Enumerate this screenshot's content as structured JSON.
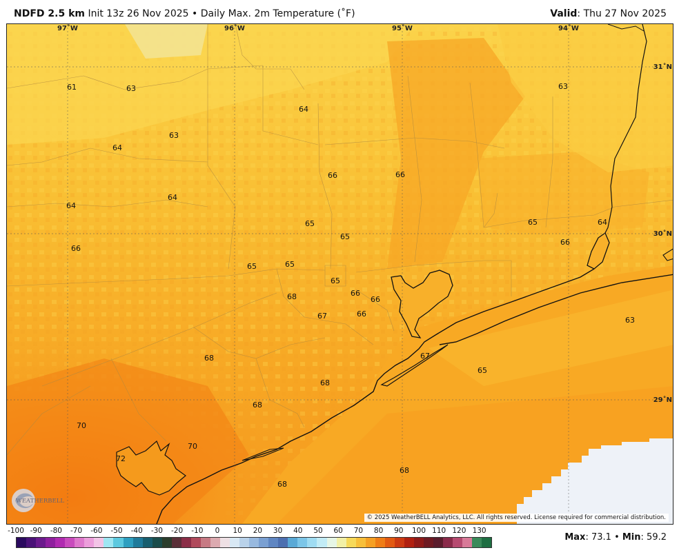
{
  "header": {
    "product": "NDFD 2.5 km",
    "init": "Init 13z 26 Nov 2025",
    "separator": "•",
    "field": "Daily Max. 2m Temperature (˚F)",
    "valid_label": "Valid",
    "valid_value": "Thu 27 Nov 2025"
  },
  "map": {
    "longitude_labels": [
      "97˚W",
      "96˚W",
      "95˚W",
      "94˚W"
    ],
    "latitude_labels": [
      "31˚N",
      "30˚N",
      "29˚N"
    ],
    "temperature_labels": [
      "61",
      "63",
      "64",
      "63",
      "63",
      "64",
      "64",
      "66",
      "66",
      "65",
      "65",
      "65",
      "65",
      "65",
      "64",
      "66",
      "65",
      "68",
      "66",
      "66",
      "67",
      "66",
      "63",
      "68",
      "68",
      "67",
      "65",
      "68",
      "70",
      "70",
      "72",
      "68",
      "68"
    ],
    "copyright": "© 2025 WeatherBELL Analytics, LLC. All rights reserved. License required for commercial distribution.",
    "logo_text": "WEATHERBELL"
  },
  "colorbar": {
    "ticks": [
      "-100",
      "-90",
      "-80",
      "-70",
      "-60",
      "-50",
      "-40",
      "-30",
      "-20",
      "-10",
      "0",
      "10",
      "20",
      "30",
      "40",
      "50",
      "60",
      "70",
      "80",
      "90",
      "100",
      "110",
      "120",
      "130"
    ],
    "colors": [
      "#2a0a5e",
      "#4a1277",
      "#6b1a8c",
      "#8f1f9e",
      "#b02ab0",
      "#c94bbd",
      "#de78cc",
      "#ec9edb",
      "#f2c4e6",
      "#9fe6f2",
      "#5cc9df",
      "#2e9fc0",
      "#1f7a9a",
      "#185e6e",
      "#1a4c4a",
      "#2b3d2c",
      "#5a2f38",
      "#8b2e47",
      "#b04a5c",
      "#c77a84",
      "#dcaab0",
      "#eee0e4",
      "#d8e8f4",
      "#b9d2ea",
      "#98b9df",
      "#7aa0d2",
      "#5f86c2",
      "#4c6fb0",
      "#5aa9d6",
      "#7cc6e8",
      "#9fdcf2",
      "#c2ecf6",
      "#e6f6e6",
      "#f2f0a6",
      "#f6d95a",
      "#f7bf3a",
      "#f5a024",
      "#ef7d16",
      "#e25a12",
      "#cc3a12",
      "#b02010",
      "#8e1a18",
      "#6e1a22",
      "#5a1c2c",
      "#8a2a4a",
      "#b64a70",
      "#d87a98",
      "#3a8a5a",
      "#1e6e42"
    ]
  },
  "stats": {
    "max_label": "Max",
    "max_value": "73.1",
    "min_label": "Min",
    "min_value": "59.2"
  }
}
